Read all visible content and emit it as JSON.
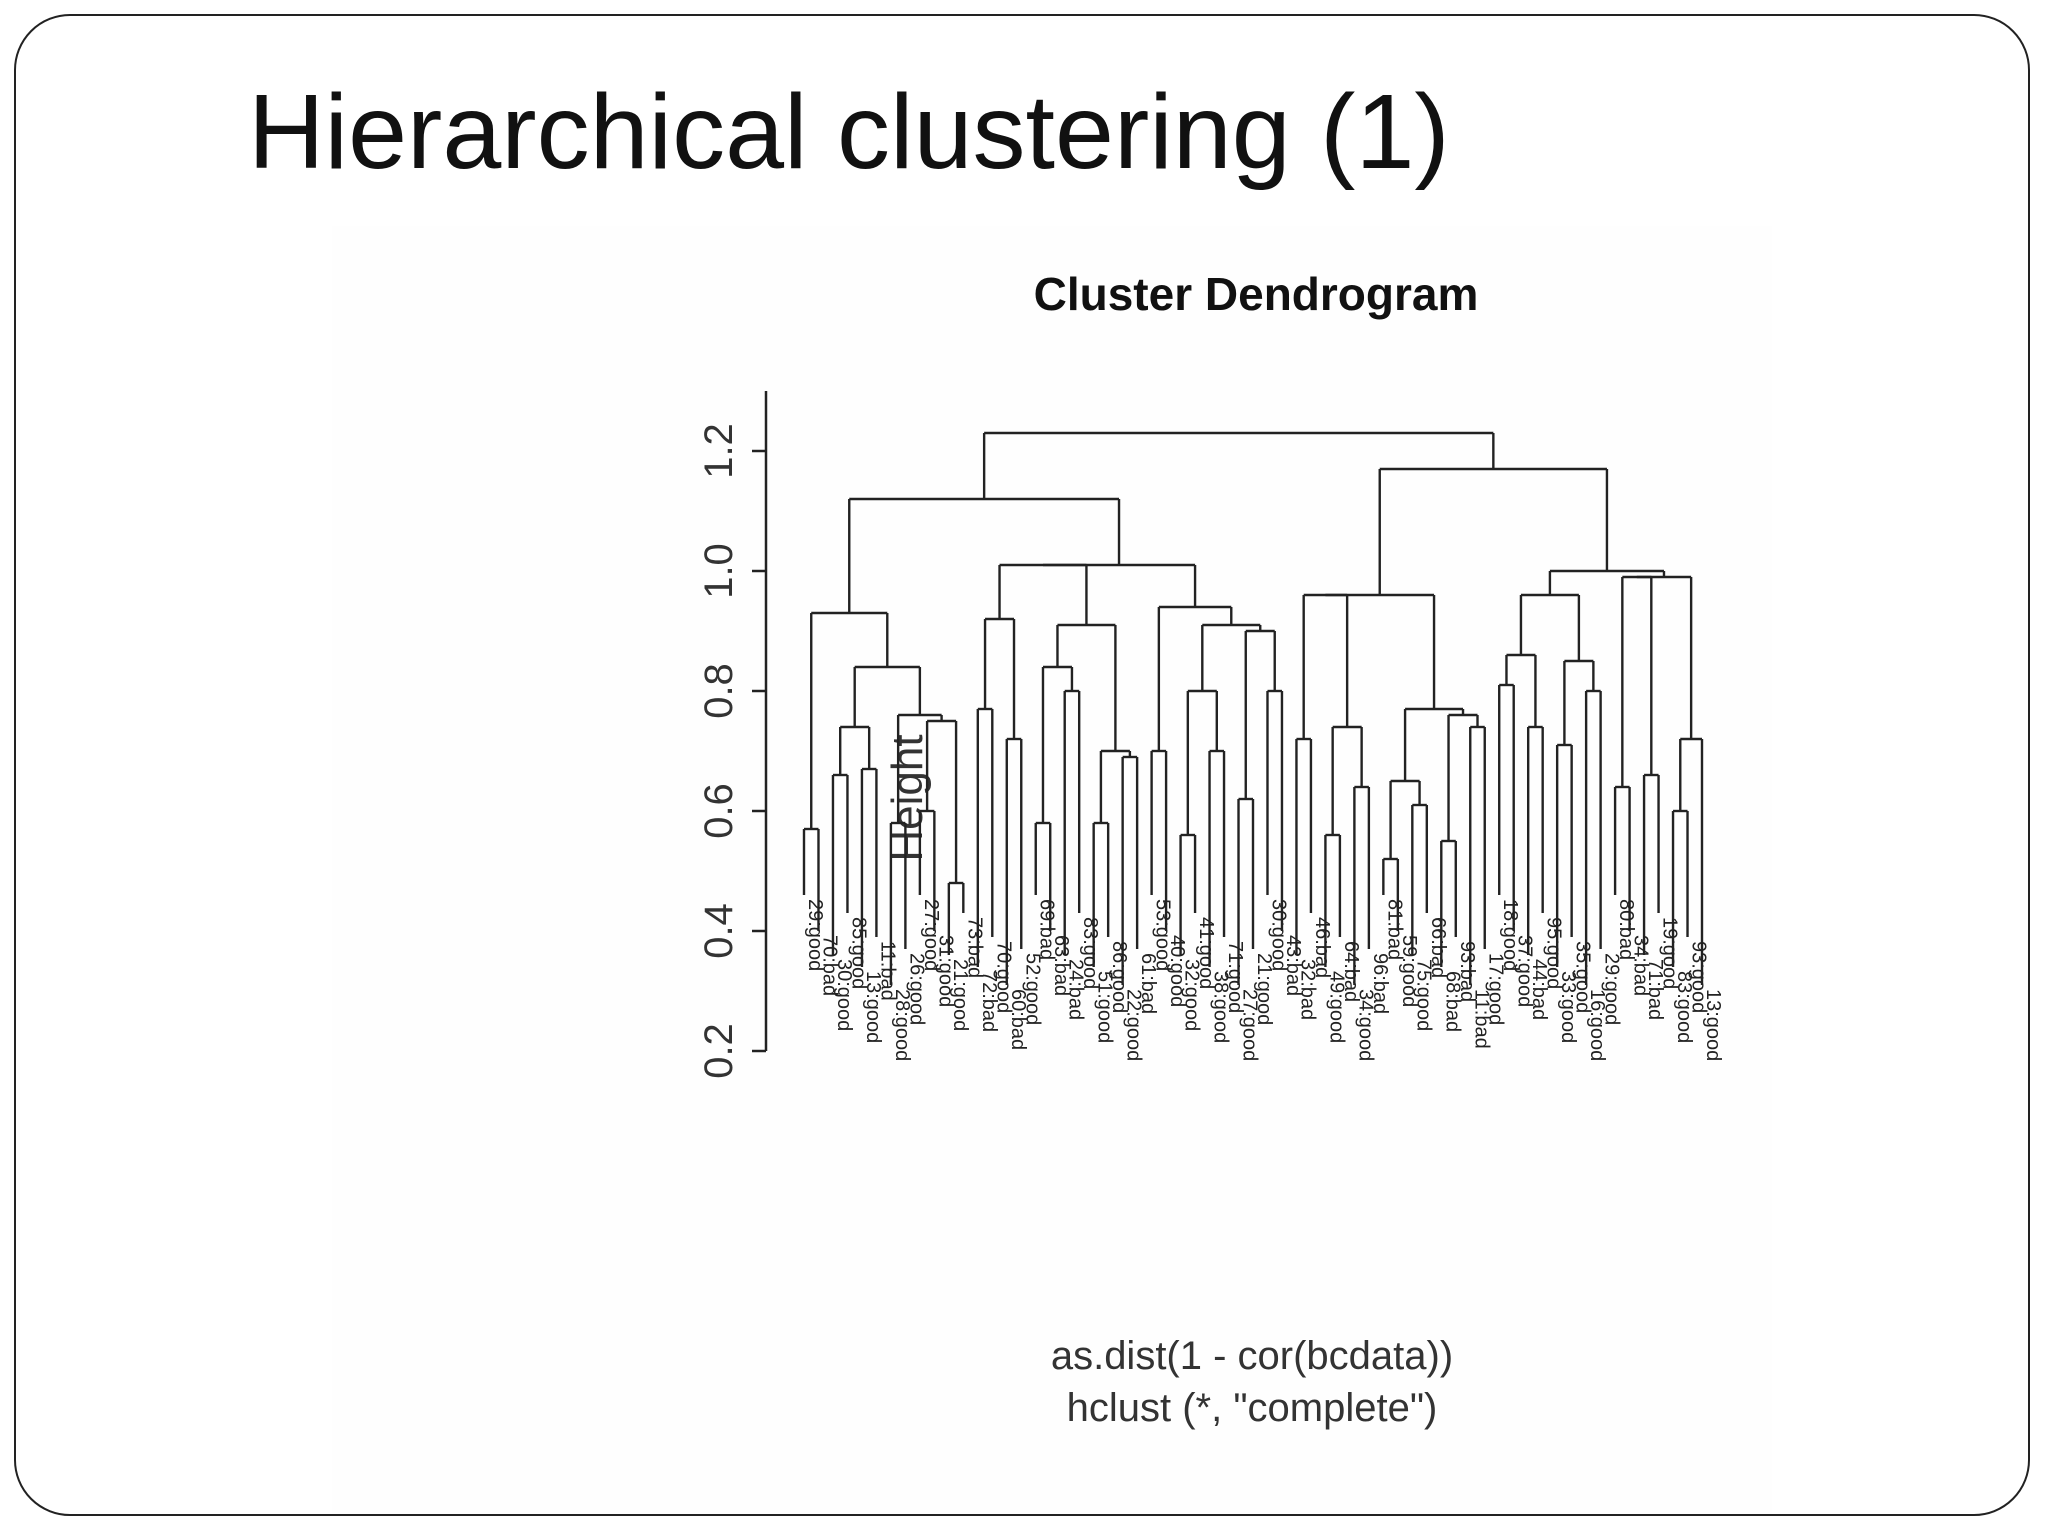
{
  "slide": {
    "title": "Hierarchical clustering (1)"
  },
  "chart_data": {
    "type": "dendrogram",
    "title": "Cluster Dendrogram",
    "ylabel": "Height",
    "subtitle_lines": [
      "as.dist(1 - cor(bcdata))",
      "hclust (*, \"complete\")"
    ],
    "ylim": [
      0.2,
      1.3
    ],
    "yticks": [
      0.2,
      0.4,
      0.6,
      0.8,
      1.0,
      1.2
    ],
    "ytick_labels": [
      "0.2",
      "0.4",
      "0.6",
      "0.8",
      "1.0",
      "1.2"
    ],
    "grid": false,
    "leaves": [
      "29:good",
      "70:bad",
      "30:good",
      "85:good",
      "13:good",
      "11:bad",
      "28:good",
      "26:good",
      "27:good",
      "31:good",
      "21:good",
      "73:bad",
      "72:bad",
      "70:good",
      "60:bad",
      "52:good",
      "69:bad",
      "63:bad",
      "24:bad",
      "83:good",
      "51:good",
      "86:good",
      "22:good",
      "61:bad",
      "53:good",
      "40:good",
      "32:good",
      "41:good",
      "38:good",
      "71:good",
      "27:good",
      "21:good",
      "30:good",
      "43:bad",
      "32:bad",
      "46:bad",
      "49:good",
      "64:bad",
      "34:good",
      "96:bad",
      "81:bad",
      "59:good",
      "75:good",
      "66:bad",
      "68:bad",
      "93:bad",
      "11:bad",
      "17:good",
      "18:good",
      "37:good",
      "44:bad",
      "95:good",
      "33:good",
      "35:good",
      "16:good",
      "29:good",
      "80:bad",
      "34:bad",
      "71:bad",
      "19:good",
      "83:good",
      "93:good",
      "13:good"
    ],
    "merges": [
      {
        "a": -1,
        "b": -2,
        "h": 0.57
      },
      {
        "a": -3,
        "b": -4,
        "h": 0.66
      },
      {
        "a": -5,
        "b": -6,
        "h": 0.67
      },
      {
        "a": 2,
        "b": 3,
        "h": 0.74
      },
      {
        "a": -7,
        "b": -8,
        "h": 0.58
      },
      {
        "a": -9,
        "b": -10,
        "h": 0.6
      },
      {
        "a": -11,
        "b": -12,
        "h": 0.48
      },
      {
        "a": 6,
        "b": 7,
        "h": 0.75
      },
      {
        "a": 5,
        "b": 8,
        "h": 0.76
      },
      {
        "a": 4,
        "b": 9,
        "h": 0.84
      },
      {
        "a": 1,
        "b": 10,
        "h": 0.93
      },
      {
        "a": -13,
        "b": -14,
        "h": 0.77
      },
      {
        "a": -15,
        "b": -16,
        "h": 0.72
      },
      {
        "a": 12,
        "b": 13,
        "h": 0.92
      },
      {
        "a": -17,
        "b": -18,
        "h": 0.58
      },
      {
        "a": -19,
        "b": -20,
        "h": 0.8
      },
      {
        "a": 15,
        "b": 16,
        "h": 0.84
      },
      {
        "a": -21,
        "b": -22,
        "h": 0.58
      },
      {
        "a": -23,
        "b": -24,
        "h": 0.69
      },
      {
        "a": 18,
        "b": 19,
        "h": 0.7
      },
      {
        "a": 17,
        "b": 20,
        "h": 0.91
      },
      {
        "a": 14,
        "b": 21,
        "h": 1.01
      },
      {
        "a": -25,
        "b": -26,
        "h": 0.7
      },
      {
        "a": -27,
        "b": -28,
        "h": 0.56
      },
      {
        "a": -29,
        "b": -30,
        "h": 0.7
      },
      {
        "a": 24,
        "b": 25,
        "h": 0.8
      },
      {
        "a": -31,
        "b": -32,
        "h": 0.62
      },
      {
        "a": -33,
        "b": -34,
        "h": 0.8
      },
      {
        "a": 27,
        "b": 28,
        "h": 0.9
      },
      {
        "a": 26,
        "b": 29,
        "h": 0.91
      },
      {
        "a": 23,
        "b": 30,
        "h": 0.94
      },
      {
        "a": 22,
        "b": 31,
        "h": 1.01
      },
      {
        "a": 11,
        "b": 32,
        "h": 1.12
      },
      {
        "a": -35,
        "b": -36,
        "h": 0.72
      },
      {
        "a": -37,
        "b": -38,
        "h": 0.56
      },
      {
        "a": -39,
        "b": -40,
        "h": 0.64
      },
      {
        "a": 35,
        "b": 36,
        "h": 0.74
      },
      {
        "a": 34,
        "b": 37,
        "h": 0.96
      },
      {
        "a": -41,
        "b": -42,
        "h": 0.52
      },
      {
        "a": -43,
        "b": -44,
        "h": 0.61
      },
      {
        "a": 39,
        "b": 40,
        "h": 0.65
      },
      {
        "a": -45,
        "b": -46,
        "h": 0.55
      },
      {
        "a": -47,
        "b": -48,
        "h": 0.74
      },
      {
        "a": 42,
        "b": 43,
        "h": 0.76
      },
      {
        "a": 41,
        "b": 44,
        "h": 0.77
      },
      {
        "a": 38,
        "b": 45,
        "h": 0.96
      },
      {
        "a": -49,
        "b": -50,
        "h": 0.81
      },
      {
        "a": -51,
        "b": -52,
        "h": 0.74
      },
      {
        "a": 47,
        "b": 48,
        "h": 0.86
      },
      {
        "a": -53,
        "b": -54,
        "h": 0.71
      },
      {
        "a": -55,
        "b": -56,
        "h": 0.8
      },
      {
        "a": 50,
        "b": 51,
        "h": 0.85
      },
      {
        "a": 49,
        "b": 52,
        "h": 0.96
      },
      {
        "a": -57,
        "b": -58,
        "h": 0.64
      },
      {
        "a": -59,
        "b": -60,
        "h": 0.66
      },
      {
        "a": 54,
        "b": 55,
        "h": 0.99
      },
      {
        "a": -61,
        "b": -62,
        "h": 0.6
      },
      {
        "a": -63,
        "b": 57,
        "h": 0.72
      },
      {
        "a": 56,
        "b": 58,
        "h": 0.99
      },
      {
        "a": 53,
        "b": 59,
        "h": 1.0
      },
      {
        "a": 46,
        "b": 60,
        "h": 1.17
      },
      {
        "a": 33,
        "b": 61,
        "h": 1.23
      }
    ]
  }
}
